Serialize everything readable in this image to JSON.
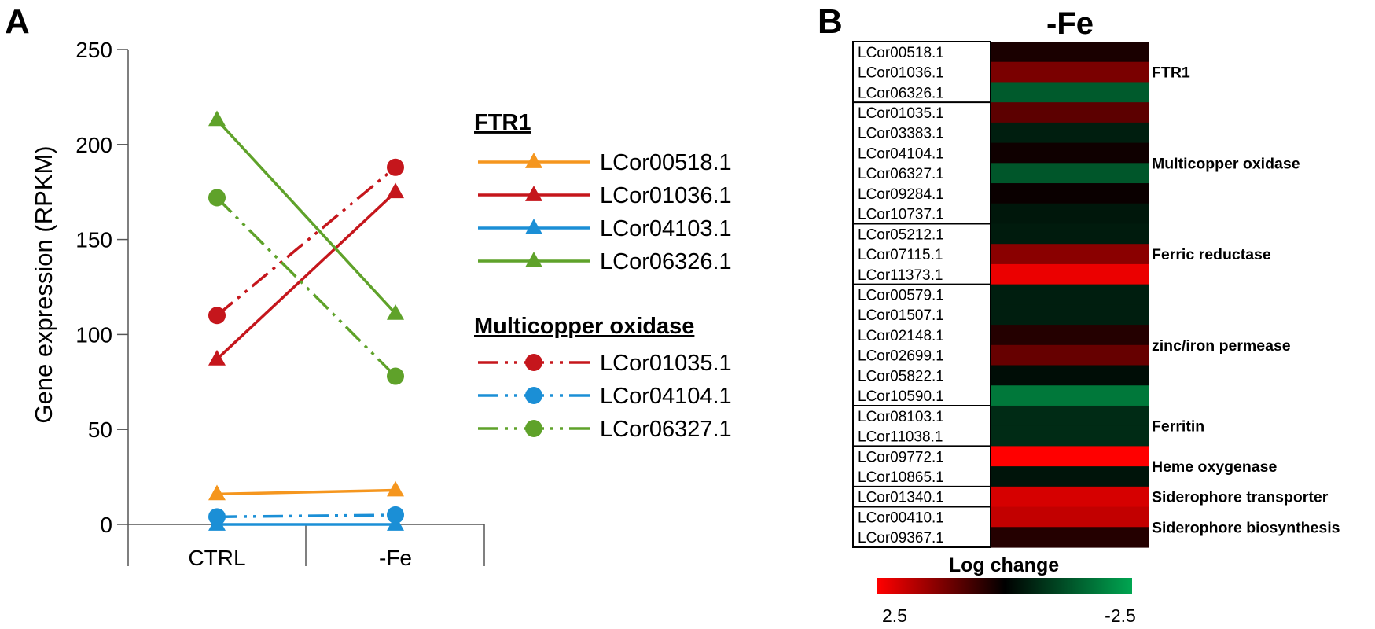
{
  "panels": {
    "a": "A",
    "b": "B"
  },
  "chart_data": [
    {
      "type": "line",
      "categories": [
        "CTRL",
        "-Fe"
      ],
      "ylabel": "Gene expression (RPKM)",
      "ylim": [
        0,
        250
      ],
      "yticks": [
        "0",
        "50",
        "100",
        "150",
        "200",
        "250"
      ],
      "legend": [
        {
          "title": "FTR1",
          "series": [
            {
              "name": "LCor00518.1",
              "color": "#f5961e",
              "marker": "triangle",
              "dash": "solid",
              "values": [
                16,
                18
              ]
            },
            {
              "name": "LCor01036.1",
              "color": "#c5161c",
              "marker": "triangle",
              "dash": "solid",
              "values": [
                87,
                175
              ]
            },
            {
              "name": "LCor04103.1",
              "color": "#1b8fd6",
              "marker": "triangle",
              "dash": "solid",
              "values": [
                0,
                0
              ]
            },
            {
              "name": "LCor06326.1",
              "color": "#5fa22a",
              "marker": "triangle",
              "dash": "solid",
              "values": [
                213,
                111
              ]
            }
          ]
        },
        {
          "title": "Multicopper oxidase",
          "series": [
            {
              "name": "LCor01035.1",
              "color": "#c5161c",
              "marker": "circle",
              "dash": "dashdotdot",
              "values": [
                110,
                188
              ]
            },
            {
              "name": "LCor04104.1",
              "color": "#1b8fd6",
              "marker": "circle",
              "dash": "dashdotdot",
              "values": [
                4,
                5
              ]
            },
            {
              "name": "LCor06327.1",
              "color": "#5fa22a",
              "marker": "circle",
              "dash": "dashdotdot",
              "values": [
                172,
                78
              ]
            }
          ]
        }
      ]
    },
    {
      "type": "heatmap",
      "title": "-Fe",
      "colorbar": {
        "title": "Log change",
        "max_label": "2.5",
        "min_label": "-2.5",
        "max": 2.5,
        "min": -2.5,
        "high_color": "#ff0000",
        "mid_color": "#000000",
        "low_color": "#00a651"
      },
      "groups": [
        {
          "name": "FTR1",
          "rows": [
            {
              "gene": "LCor00518.1",
              "value": 0.25
            },
            {
              "gene": "LCor01036.1",
              "value": 1.2
            },
            {
              "gene": "LCor06326.1",
              "value": -1.35
            }
          ]
        },
        {
          "name": "Multicopper oxidase",
          "rows": [
            {
              "gene": "LCor01035.1",
              "value": 0.9
            },
            {
              "gene": "LCor03383.1",
              "value": -0.45
            },
            {
              "gene": "LCor04104.1",
              "value": 0.15
            },
            {
              "gene": "LCor06327.1",
              "value": -1.3
            },
            {
              "gene": "LCor09284.1",
              "value": 0.1
            },
            {
              "gene": "LCor10737.1",
              "value": -0.35
            }
          ]
        },
        {
          "name": "Ferric reductase",
          "rows": [
            {
              "gene": "LCor05212.1",
              "value": -0.4
            },
            {
              "gene": "LCor07115.1",
              "value": 1.35
            },
            {
              "gene": "LCor11373.1",
              "value": 2.3
            }
          ]
        },
        {
          "name": "zinc/iron permease",
          "rows": [
            {
              "gene": "LCor00579.1",
              "value": -0.45
            },
            {
              "gene": "LCor01507.1",
              "value": -0.45
            },
            {
              "gene": "LCor02148.1",
              "value": 0.35
            },
            {
              "gene": "LCor02699.1",
              "value": 1.0
            },
            {
              "gene": "LCor05822.1",
              "value": -0.2
            },
            {
              "gene": "LCor10590.1",
              "value": -1.8
            }
          ]
        },
        {
          "name": "Ferritin",
          "rows": [
            {
              "gene": "LCor08103.1",
              "value": -0.65
            },
            {
              "gene": "LCor11038.1",
              "value": -0.65
            }
          ]
        },
        {
          "name": "Heme oxygenase",
          "rows": [
            {
              "gene": "LCor09772.1",
              "value": 2.5
            },
            {
              "gene": "LCor10865.1",
              "value": -0.3
            }
          ]
        },
        {
          "name": "Siderophore transporter",
          "rows": [
            {
              "gene": "LCor01340.1",
              "value": 2.1
            }
          ]
        },
        {
          "name": "Siderophore biosynthesis",
          "rows": [
            {
              "gene": "LCor00410.1",
              "value": 1.9
            },
            {
              "gene": "LCor09367.1",
              "value": 0.35
            }
          ]
        }
      ]
    }
  ]
}
